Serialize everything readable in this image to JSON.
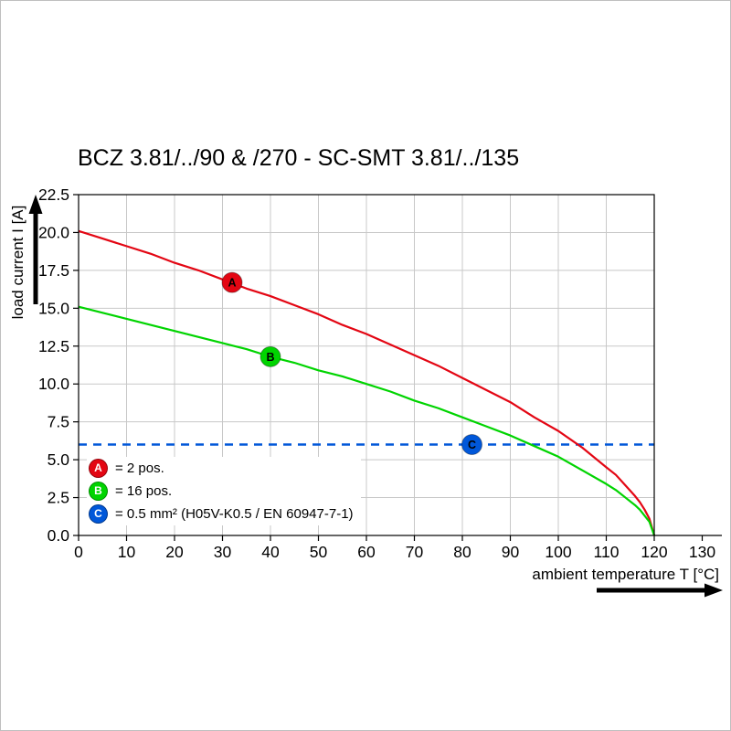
{
  "chart": {
    "title": "BCZ 3.81/../90 & /270 - SC-SMT 3.81/../135",
    "y_axis_label": "load current I [A]",
    "x_axis_label": "ambient temperature T [°C]"
  },
  "legend": {
    "items": [
      {
        "letter": "A",
        "text": "= 2 pos.",
        "color": "#e30613"
      },
      {
        "letter": "B",
        "text": "= 16 pos.",
        "color": "#00d400"
      },
      {
        "letter": "C",
        "text": "= 0.5 mm² (H05V-K0.5 / EN 60947-7-1)",
        "color": "#0057d9"
      }
    ]
  },
  "chart_data": {
    "type": "line",
    "title": "BCZ 3.81/../90 & /270 - SC-SMT 3.81/../135",
    "xlabel": "ambient temperature T [°C]",
    "ylabel": "load current I [A]",
    "x_axis": {
      "min": 0,
      "max": 120,
      "axis_arrow_to": 130,
      "ticks": [
        0,
        10,
        20,
        30,
        40,
        50,
        60,
        70,
        80,
        90,
        100,
        110,
        120,
        130
      ]
    },
    "y_axis": {
      "min": 0,
      "max": 22.5,
      "ticks": [
        0,
        2.5,
        5,
        7.5,
        10,
        12.5,
        15,
        17.5,
        20,
        22.5
      ]
    },
    "grid": true,
    "grid_color": "#c8c8c8",
    "series": [
      {
        "name": "A",
        "legend": "= 2 pos.",
        "color": "#e30613",
        "marker": {
          "x": 32,
          "y": 16.7
        },
        "points": [
          [
            0,
            20.1
          ],
          [
            5,
            19.6
          ],
          [
            10,
            19.1
          ],
          [
            15,
            18.6
          ],
          [
            20,
            18.0
          ],
          [
            25,
            17.5
          ],
          [
            30,
            16.9
          ],
          [
            35,
            16.3
          ],
          [
            40,
            15.8
          ],
          [
            45,
            15.2
          ],
          [
            50,
            14.6
          ],
          [
            55,
            13.9
          ],
          [
            60,
            13.3
          ],
          [
            65,
            12.6
          ],
          [
            70,
            11.9
          ],
          [
            75,
            11.2
          ],
          [
            80,
            10.4
          ],
          [
            85,
            9.6
          ],
          [
            90,
            8.8
          ],
          [
            95,
            7.8
          ],
          [
            100,
            6.9
          ],
          [
            105,
            5.8
          ],
          [
            110,
            4.5
          ],
          [
            112,
            4.0
          ],
          [
            114,
            3.3
          ],
          [
            116,
            2.6
          ],
          [
            117,
            2.2
          ],
          [
            118,
            1.7
          ],
          [
            119,
            1.1
          ],
          [
            120,
            0
          ]
        ]
      },
      {
        "name": "B",
        "legend": "= 16 pos.",
        "color": "#00d400",
        "marker": {
          "x": 40,
          "y": 11.8
        },
        "points": [
          [
            0,
            15.1
          ],
          [
            5,
            14.7
          ],
          [
            10,
            14.3
          ],
          [
            15,
            13.9
          ],
          [
            20,
            13.5
          ],
          [
            25,
            13.1
          ],
          [
            30,
            12.7
          ],
          [
            35,
            12.3
          ],
          [
            40,
            11.8
          ],
          [
            45,
            11.4
          ],
          [
            50,
            10.9
          ],
          [
            55,
            10.5
          ],
          [
            60,
            10.0
          ],
          [
            65,
            9.5
          ],
          [
            70,
            8.9
          ],
          [
            75,
            8.4
          ],
          [
            80,
            7.8
          ],
          [
            85,
            7.2
          ],
          [
            90,
            6.6
          ],
          [
            95,
            5.9
          ],
          [
            100,
            5.2
          ],
          [
            105,
            4.3
          ],
          [
            110,
            3.4
          ],
          [
            112,
            3.0
          ],
          [
            114,
            2.5
          ],
          [
            116,
            2.0
          ],
          [
            117,
            1.7
          ],
          [
            118,
            1.3
          ],
          [
            119,
            0.9
          ],
          [
            120,
            0
          ]
        ]
      }
    ],
    "reference_line": {
      "label": "C",
      "y": 6.0,
      "style": "dashed",
      "color": "#0057d9",
      "marker": {
        "x": 82,
        "y": 6.0
      },
      "legend": "= 0.5 mm² (H05V-K0.5 / EN 60947-7-1)"
    }
  }
}
